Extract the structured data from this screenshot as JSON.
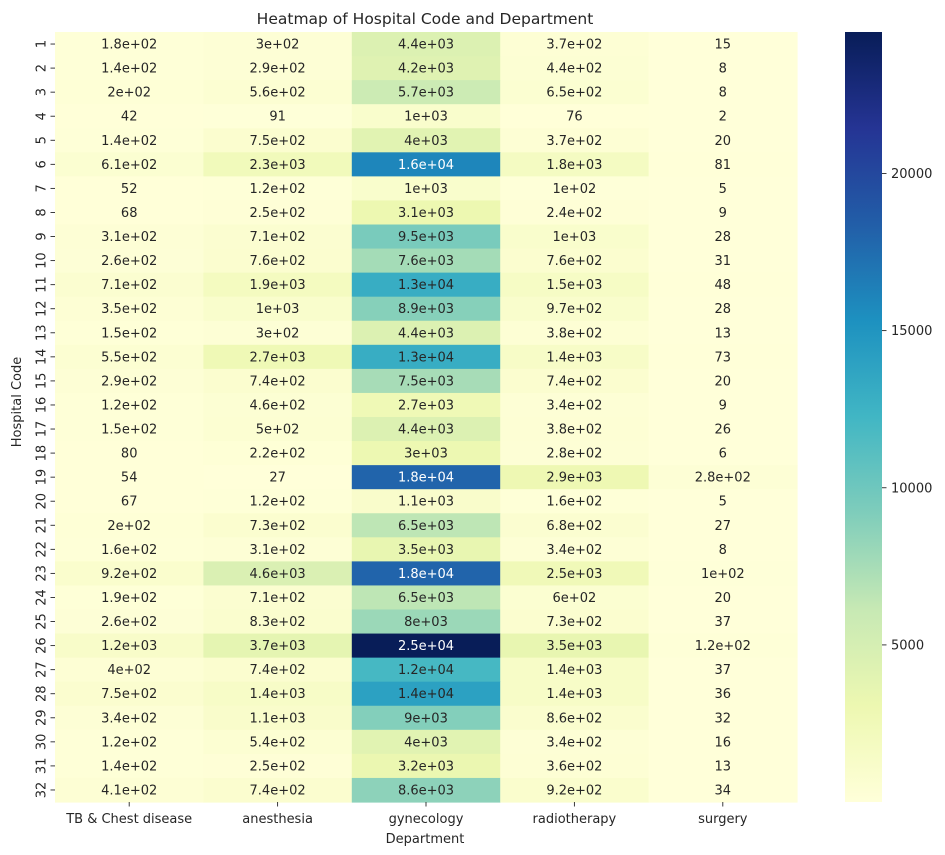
{
  "chart_data": {
    "type": "heatmap",
    "title": "Heatmap of Hospital Code and Department",
    "xlabel": "Department",
    "ylabel": "Hospital Code",
    "colormap": "YlGnBu",
    "vmin": 2,
    "vmax": 24500,
    "colorbar_ticks": [
      5000,
      10000,
      15000,
      20000
    ],
    "colorbar_tick_labels": [
      "5000",
      "10000",
      "15000",
      "20000"
    ],
    "columns": [
      "TB & Chest disease",
      "anesthesia",
      "gynecology",
      "radiotherapy",
      "surgery"
    ],
    "rows": [
      "1",
      "2",
      "3",
      "4",
      "5",
      "6",
      "7",
      "8",
      "9",
      "10",
      "11",
      "12",
      "13",
      "14",
      "15",
      "16",
      "17",
      "18",
      "19",
      "20",
      "21",
      "22",
      "23",
      "24",
      "25",
      "26",
      "27",
      "28",
      "29",
      "30",
      "31",
      "32"
    ],
    "values": [
      [
        180,
        300,
        4400,
        370,
        15
      ],
      [
        140,
        290,
        4200,
        440,
        8
      ],
      [
        200,
        560,
        5700,
        650,
        8
      ],
      [
        42,
        91,
        1000,
        76,
        2
      ],
      [
        140,
        750,
        4000,
        370,
        20
      ],
      [
        610,
        2300,
        16000,
        1800,
        81
      ],
      [
        52,
        120,
        1000,
        100,
        5
      ],
      [
        68,
        250,
        3100,
        240,
        9
      ],
      [
        310,
        710,
        9500,
        1000,
        28
      ],
      [
        260,
        760,
        7600,
        760,
        31
      ],
      [
        710,
        1900,
        13000,
        1500,
        48
      ],
      [
        350,
        1000,
        8900,
        970,
        28
      ],
      [
        150,
        300,
        4400,
        380,
        13
      ],
      [
        550,
        2700,
        13000,
        1400,
        73
      ],
      [
        290,
        740,
        7500,
        740,
        20
      ],
      [
        120,
        460,
        2700,
        340,
        9
      ],
      [
        150,
        500,
        4400,
        380,
        26
      ],
      [
        80,
        220,
        3000,
        280,
        6
      ],
      [
        54,
        27,
        18000,
        2900,
        280
      ],
      [
        67,
        120,
        1100,
        160,
        5
      ],
      [
        200,
        730,
        6500,
        680,
        27
      ],
      [
        160,
        310,
        3500,
        340,
        8
      ],
      [
        920,
        4600,
        18000,
        2500,
        100
      ],
      [
        190,
        710,
        6500,
        600,
        20
      ],
      [
        260,
        830,
        8000,
        730,
        37
      ],
      [
        1200,
        3700,
        24500,
        3500,
        120
      ],
      [
        400,
        740,
        12000,
        1400,
        37
      ],
      [
        750,
        1400,
        14000,
        1400,
        36
      ],
      [
        340,
        1100,
        9000,
        860,
        32
      ],
      [
        120,
        540,
        4000,
        340,
        16
      ],
      [
        140,
        250,
        3200,
        360,
        13
      ],
      [
        410,
        740,
        8600,
        920,
        34
      ]
    ],
    "annotations": [
      [
        "1.8e+02",
        "3e+02",
        "4.4e+03",
        "3.7e+02",
        "15"
      ],
      [
        "1.4e+02",
        "2.9e+02",
        "4.2e+03",
        "4.4e+02",
        "8"
      ],
      [
        "2e+02",
        "5.6e+02",
        "5.7e+03",
        "6.5e+02",
        "8"
      ],
      [
        "42",
        "91",
        "1e+03",
        "76",
        "2"
      ],
      [
        "1.4e+02",
        "7.5e+02",
        "4e+03",
        "3.7e+02",
        "20"
      ],
      [
        "6.1e+02",
        "2.3e+03",
        "1.6e+04",
        "1.8e+03",
        "81"
      ],
      [
        "52",
        "1.2e+02",
        "1e+03",
        "1e+02",
        "5"
      ],
      [
        "68",
        "2.5e+02",
        "3.1e+03",
        "2.4e+02",
        "9"
      ],
      [
        "3.1e+02",
        "7.1e+02",
        "9.5e+03",
        "1e+03",
        "28"
      ],
      [
        "2.6e+02",
        "7.6e+02",
        "7.6e+03",
        "7.6e+02",
        "31"
      ],
      [
        "7.1e+02",
        "1.9e+03",
        "1.3e+04",
        "1.5e+03",
        "48"
      ],
      [
        "3.5e+02",
        "1e+03",
        "8.9e+03",
        "9.7e+02",
        "28"
      ],
      [
        "1.5e+02",
        "3e+02",
        "4.4e+03",
        "3.8e+02",
        "13"
      ],
      [
        "5.5e+02",
        "2.7e+03",
        "1.3e+04",
        "1.4e+03",
        "73"
      ],
      [
        "2.9e+02",
        "7.4e+02",
        "7.5e+03",
        "7.4e+02",
        "20"
      ],
      [
        "1.2e+02",
        "4.6e+02",
        "2.7e+03",
        "3.4e+02",
        "9"
      ],
      [
        "1.5e+02",
        "5e+02",
        "4.4e+03",
        "3.8e+02",
        "26"
      ],
      [
        "80",
        "2.2e+02",
        "3e+03",
        "2.8e+02",
        "6"
      ],
      [
        "54",
        "27",
        "1.8e+04",
        "2.9e+03",
        "2.8e+02"
      ],
      [
        "67",
        "1.2e+02",
        "1.1e+03",
        "1.6e+02",
        "5"
      ],
      [
        "2e+02",
        "7.3e+02",
        "6.5e+03",
        "6.8e+02",
        "27"
      ],
      [
        "1.6e+02",
        "3.1e+02",
        "3.5e+03",
        "3.4e+02",
        "8"
      ],
      [
        "9.2e+02",
        "4.6e+03",
        "1.8e+04",
        "2.5e+03",
        "1e+02"
      ],
      [
        "1.9e+02",
        "7.1e+02",
        "6.5e+03",
        "6e+02",
        "20"
      ],
      [
        "2.6e+02",
        "8.3e+02",
        "8e+03",
        "7.3e+02",
        "37"
      ],
      [
        "1.2e+03",
        "3.7e+03",
        "2.5e+04",
        "3.5e+03",
        "1.2e+02"
      ],
      [
        "4e+02",
        "7.4e+02",
        "1.2e+04",
        "1.4e+03",
        "37"
      ],
      [
        "7.5e+02",
        "1.4e+03",
        "1.4e+04",
        "1.4e+03",
        "36"
      ],
      [
        "3.4e+02",
        "1.1e+03",
        "9e+03",
        "8.6e+02",
        "32"
      ],
      [
        "1.2e+02",
        "5.4e+02",
        "4e+03",
        "3.4e+02",
        "16"
      ],
      [
        "1.4e+02",
        "2.5e+02",
        "3.2e+03",
        "3.6e+02",
        "13"
      ],
      [
        "4.1e+02",
        "7.4e+02",
        "8.6e+03",
        "9.2e+02",
        "34"
      ]
    ],
    "legend": "colorbar-right",
    "grid": false
  }
}
